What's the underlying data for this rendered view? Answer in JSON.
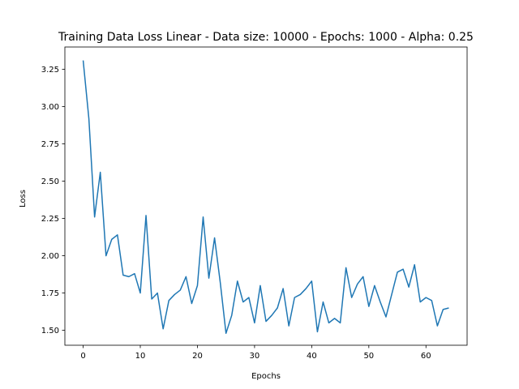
{
  "chart_data": {
    "type": "line",
    "title": "Training Data Loss Linear - Data size: 10000 - Epochs: 1000 - Alpha: 0.25",
    "xlabel": "Epochs",
    "ylabel": "Loss",
    "xlim": [
      -3.2,
      67.2
    ],
    "ylim": [
      1.4,
      3.4
    ],
    "xticks": [
      0,
      10,
      20,
      30,
      40,
      50,
      60
    ],
    "yticks": [
      1.5,
      1.75,
      2.0,
      2.25,
      2.5,
      2.75,
      3.0,
      3.25
    ],
    "grid": false,
    "colors": {
      "line": "#1f77b4",
      "axes": "#000000",
      "background": "#ffffff"
    },
    "series": [
      {
        "x": [
          0,
          1,
          2,
          3,
          4,
          5,
          6,
          7,
          8,
          9,
          10,
          11,
          12,
          13,
          14,
          15,
          16,
          17,
          18,
          19,
          20,
          21,
          22,
          23,
          24,
          25,
          26,
          27,
          28,
          29,
          30,
          31,
          32,
          33,
          34,
          35,
          36,
          37,
          38,
          39,
          40,
          41,
          42,
          43,
          44,
          45,
          46,
          47,
          48,
          49,
          50,
          51,
          52,
          53,
          54,
          55,
          56,
          57,
          58,
          59,
          60,
          61,
          62,
          63,
          64
        ],
        "values": [
          3.31,
          2.92,
          2.26,
          2.56,
          2.0,
          2.11,
          2.14,
          1.87,
          1.86,
          1.88,
          1.75,
          2.27,
          1.71,
          1.75,
          1.51,
          1.7,
          1.74,
          1.77,
          1.86,
          1.68,
          1.8,
          2.26,
          1.85,
          2.12,
          1.82,
          1.48,
          1.6,
          1.83,
          1.69,
          1.72,
          1.55,
          1.8,
          1.56,
          1.6,
          1.65,
          1.78,
          1.53,
          1.72,
          1.74,
          1.78,
          1.83,
          1.49,
          1.69,
          1.55,
          1.58,
          1.55,
          1.92,
          1.72,
          1.81,
          1.86,
          1.66,
          1.8,
          1.69,
          1.59,
          1.74,
          1.89,
          1.91,
          1.79,
          1.94,
          1.69,
          1.72,
          1.7,
          1.53,
          1.64,
          1.65
        ]
      }
    ]
  }
}
